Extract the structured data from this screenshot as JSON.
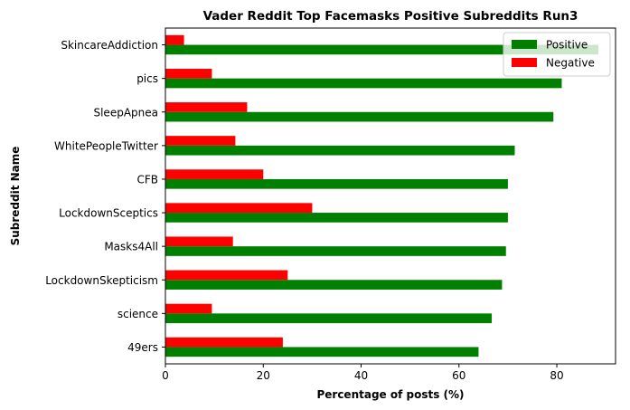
{
  "chart_data": {
    "type": "bar",
    "orientation": "horizontal",
    "title": "Vader Reddit Top Facemasks Positive Subreddits Run3",
    "xlabel": "Percentage of posts (%)",
    "ylabel": "Subreddit Name",
    "categories": [
      "49ers",
      "science",
      "LockdownSkepticism",
      "Masks4All",
      "LockdownSceptics",
      "CFB",
      "WhitePeopleTwitter",
      "SleepApnea",
      "pics",
      "SkincareAddiction"
    ],
    "series": [
      {
        "name": "Positive",
        "color": "#008000",
        "values": [
          64.0,
          66.7,
          68.8,
          69.6,
          70.0,
          70.0,
          71.4,
          79.3,
          81.0,
          88.5
        ]
      },
      {
        "name": "Negative",
        "color": "#ff0000",
        "values": [
          24.0,
          9.5,
          25.0,
          13.8,
          30.0,
          20.0,
          14.3,
          16.7,
          9.5,
          3.8
        ]
      }
    ],
    "xlim": [
      0,
      92
    ],
    "xticks": [
      0,
      20,
      40,
      60,
      80
    ],
    "grid": false,
    "legend": "top-right"
  }
}
